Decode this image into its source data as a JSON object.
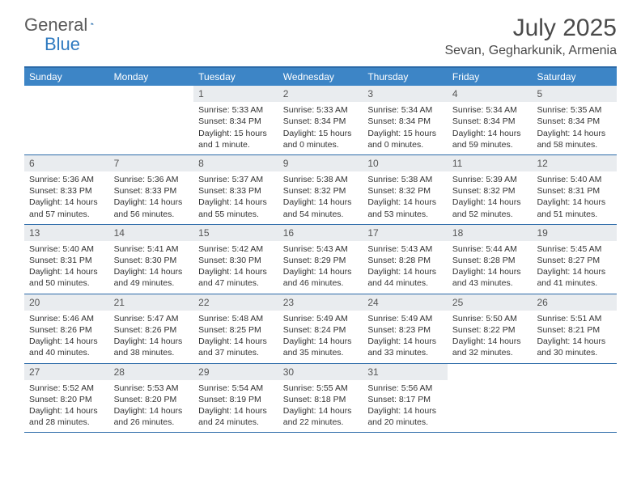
{
  "logo": {
    "general": "General",
    "blue": "Blue"
  },
  "title": {
    "month": "July 2025",
    "location": "Sevan, Gegharkunik, Armenia"
  },
  "colors": {
    "header_bg": "#3d85c6",
    "header_border": "#2b6aa8",
    "daynum_bg": "#e9ecef",
    "text": "#333333",
    "logo_gray": "#5a5a5a",
    "logo_blue": "#2f7ac0"
  },
  "weekdays": [
    "Sunday",
    "Monday",
    "Tuesday",
    "Wednesday",
    "Thursday",
    "Friday",
    "Saturday"
  ],
  "weeks": [
    [
      null,
      null,
      {
        "n": "1",
        "sunrise": "Sunrise: 5:33 AM",
        "sunset": "Sunset: 8:34 PM",
        "daylight": "Daylight: 15 hours and 1 minute."
      },
      {
        "n": "2",
        "sunrise": "Sunrise: 5:33 AM",
        "sunset": "Sunset: 8:34 PM",
        "daylight": "Daylight: 15 hours and 0 minutes."
      },
      {
        "n": "3",
        "sunrise": "Sunrise: 5:34 AM",
        "sunset": "Sunset: 8:34 PM",
        "daylight": "Daylight: 15 hours and 0 minutes."
      },
      {
        "n": "4",
        "sunrise": "Sunrise: 5:34 AM",
        "sunset": "Sunset: 8:34 PM",
        "daylight": "Daylight: 14 hours and 59 minutes."
      },
      {
        "n": "5",
        "sunrise": "Sunrise: 5:35 AM",
        "sunset": "Sunset: 8:34 PM",
        "daylight": "Daylight: 14 hours and 58 minutes."
      }
    ],
    [
      {
        "n": "6",
        "sunrise": "Sunrise: 5:36 AM",
        "sunset": "Sunset: 8:33 PM",
        "daylight": "Daylight: 14 hours and 57 minutes."
      },
      {
        "n": "7",
        "sunrise": "Sunrise: 5:36 AM",
        "sunset": "Sunset: 8:33 PM",
        "daylight": "Daylight: 14 hours and 56 minutes."
      },
      {
        "n": "8",
        "sunrise": "Sunrise: 5:37 AM",
        "sunset": "Sunset: 8:33 PM",
        "daylight": "Daylight: 14 hours and 55 minutes."
      },
      {
        "n": "9",
        "sunrise": "Sunrise: 5:38 AM",
        "sunset": "Sunset: 8:32 PM",
        "daylight": "Daylight: 14 hours and 54 minutes."
      },
      {
        "n": "10",
        "sunrise": "Sunrise: 5:38 AM",
        "sunset": "Sunset: 8:32 PM",
        "daylight": "Daylight: 14 hours and 53 minutes."
      },
      {
        "n": "11",
        "sunrise": "Sunrise: 5:39 AM",
        "sunset": "Sunset: 8:32 PM",
        "daylight": "Daylight: 14 hours and 52 minutes."
      },
      {
        "n": "12",
        "sunrise": "Sunrise: 5:40 AM",
        "sunset": "Sunset: 8:31 PM",
        "daylight": "Daylight: 14 hours and 51 minutes."
      }
    ],
    [
      {
        "n": "13",
        "sunrise": "Sunrise: 5:40 AM",
        "sunset": "Sunset: 8:31 PM",
        "daylight": "Daylight: 14 hours and 50 minutes."
      },
      {
        "n": "14",
        "sunrise": "Sunrise: 5:41 AM",
        "sunset": "Sunset: 8:30 PM",
        "daylight": "Daylight: 14 hours and 49 minutes."
      },
      {
        "n": "15",
        "sunrise": "Sunrise: 5:42 AM",
        "sunset": "Sunset: 8:30 PM",
        "daylight": "Daylight: 14 hours and 47 minutes."
      },
      {
        "n": "16",
        "sunrise": "Sunrise: 5:43 AM",
        "sunset": "Sunset: 8:29 PM",
        "daylight": "Daylight: 14 hours and 46 minutes."
      },
      {
        "n": "17",
        "sunrise": "Sunrise: 5:43 AM",
        "sunset": "Sunset: 8:28 PM",
        "daylight": "Daylight: 14 hours and 44 minutes."
      },
      {
        "n": "18",
        "sunrise": "Sunrise: 5:44 AM",
        "sunset": "Sunset: 8:28 PM",
        "daylight": "Daylight: 14 hours and 43 minutes."
      },
      {
        "n": "19",
        "sunrise": "Sunrise: 5:45 AM",
        "sunset": "Sunset: 8:27 PM",
        "daylight": "Daylight: 14 hours and 41 minutes."
      }
    ],
    [
      {
        "n": "20",
        "sunrise": "Sunrise: 5:46 AM",
        "sunset": "Sunset: 8:26 PM",
        "daylight": "Daylight: 14 hours and 40 minutes."
      },
      {
        "n": "21",
        "sunrise": "Sunrise: 5:47 AM",
        "sunset": "Sunset: 8:26 PM",
        "daylight": "Daylight: 14 hours and 38 minutes."
      },
      {
        "n": "22",
        "sunrise": "Sunrise: 5:48 AM",
        "sunset": "Sunset: 8:25 PM",
        "daylight": "Daylight: 14 hours and 37 minutes."
      },
      {
        "n": "23",
        "sunrise": "Sunrise: 5:49 AM",
        "sunset": "Sunset: 8:24 PM",
        "daylight": "Daylight: 14 hours and 35 minutes."
      },
      {
        "n": "24",
        "sunrise": "Sunrise: 5:49 AM",
        "sunset": "Sunset: 8:23 PM",
        "daylight": "Daylight: 14 hours and 33 minutes."
      },
      {
        "n": "25",
        "sunrise": "Sunrise: 5:50 AM",
        "sunset": "Sunset: 8:22 PM",
        "daylight": "Daylight: 14 hours and 32 minutes."
      },
      {
        "n": "26",
        "sunrise": "Sunrise: 5:51 AM",
        "sunset": "Sunset: 8:21 PM",
        "daylight": "Daylight: 14 hours and 30 minutes."
      }
    ],
    [
      {
        "n": "27",
        "sunrise": "Sunrise: 5:52 AM",
        "sunset": "Sunset: 8:20 PM",
        "daylight": "Daylight: 14 hours and 28 minutes."
      },
      {
        "n": "28",
        "sunrise": "Sunrise: 5:53 AM",
        "sunset": "Sunset: 8:20 PM",
        "daylight": "Daylight: 14 hours and 26 minutes."
      },
      {
        "n": "29",
        "sunrise": "Sunrise: 5:54 AM",
        "sunset": "Sunset: 8:19 PM",
        "daylight": "Daylight: 14 hours and 24 minutes."
      },
      {
        "n": "30",
        "sunrise": "Sunrise: 5:55 AM",
        "sunset": "Sunset: 8:18 PM",
        "daylight": "Daylight: 14 hours and 22 minutes."
      },
      {
        "n": "31",
        "sunrise": "Sunrise: 5:56 AM",
        "sunset": "Sunset: 8:17 PM",
        "daylight": "Daylight: 14 hours and 20 minutes."
      },
      null,
      null
    ]
  ]
}
